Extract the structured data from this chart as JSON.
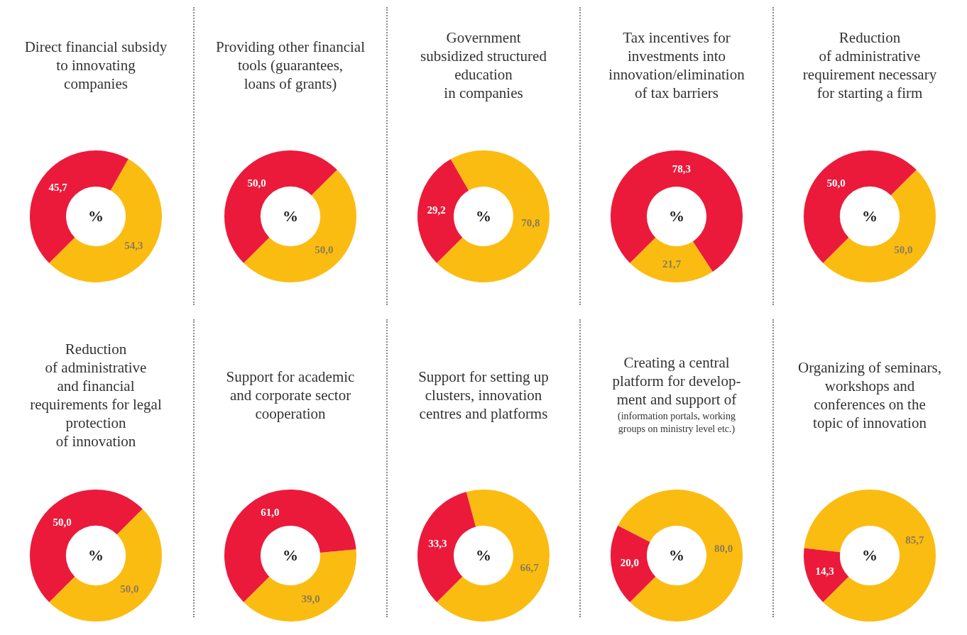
{
  "chart_data": [
    {
      "type": "donut",
      "title": "Direct financial subsidy\nto innovating\ncompanies",
      "categories": [
        null,
        null
      ],
      "values": [
        54.3,
        45.7
      ],
      "colors": [
        "#fbbc12",
        "#eb1a3b"
      ],
      "value_labels": [
        "54,3",
        "45,7"
      ],
      "annotations": [
        "%"
      ]
    },
    {
      "type": "donut",
      "title": "Providing other financial\ntools (guarantees,\nloans of grants)",
      "categories": [
        null,
        null
      ],
      "values": [
        50.0,
        50.0
      ],
      "colors": [
        "#fbbc12",
        "#eb1a3b"
      ],
      "value_labels": [
        "50,0",
        "50,0"
      ],
      "annotations": [
        "%"
      ]
    },
    {
      "type": "donut",
      "title": "Government\nsubsidized structured\neducation\nin companies",
      "categories": [
        null,
        null
      ],
      "values": [
        70.8,
        29.2
      ],
      "colors": [
        "#fbbc12",
        "#eb1a3b"
      ],
      "value_labels": [
        "70,8",
        "29,2"
      ],
      "annotations": [
        "%"
      ]
    },
    {
      "type": "donut",
      "title": "Tax incentives for\ninvestments into\ninnovation/elimination\nof tax barriers",
      "categories": [
        null,
        null
      ],
      "values": [
        21.7,
        78.3
      ],
      "colors": [
        "#fbbc12",
        "#eb1a3b"
      ],
      "value_labels": [
        "21,7",
        "78,3"
      ],
      "annotations": [
        "%"
      ]
    },
    {
      "type": "donut",
      "title": "Reduction\nof administrative\nrequirement necessary\nfor starting a firm",
      "categories": [
        null,
        null
      ],
      "values": [
        50.0,
        50.0
      ],
      "colors": [
        "#fbbc12",
        "#eb1a3b"
      ],
      "value_labels": [
        "50,0",
        "50,0"
      ],
      "annotations": [
        "%"
      ]
    },
    {
      "type": "donut",
      "title": "Reduction\nof administrative\nand financial\nrequirements for legal\nprotection\nof innovation",
      "categories": [
        null,
        null
      ],
      "values": [
        50.0,
        50.0
      ],
      "colors": [
        "#fbbc12",
        "#eb1a3b"
      ],
      "value_labels": [
        "50,0",
        "50,0"
      ],
      "annotations": [
        "%"
      ]
    },
    {
      "type": "donut",
      "title": "Support for academic\nand corporate sector\ncooperation",
      "categories": [
        null,
        null
      ],
      "values": [
        39.0,
        61.0
      ],
      "colors": [
        "#fbbc12",
        "#eb1a3b"
      ],
      "value_labels": [
        "39,0",
        "61,0"
      ],
      "annotations": [
        "%"
      ]
    },
    {
      "type": "donut",
      "title": "Support for setting up\nclusters, innovation\ncentres and platforms",
      "categories": [
        null,
        null
      ],
      "values": [
        66.7,
        33.3
      ],
      "colors": [
        "#fbbc12",
        "#eb1a3b"
      ],
      "value_labels": [
        "66,7",
        "33,3"
      ],
      "annotations": [
        "%"
      ]
    },
    {
      "type": "donut",
      "title": "Creating a central\nplatform for develop-\nment and support of",
      "subtitle": "(information portals, working\ngroups on ministry level etc.)",
      "categories": [
        null,
        null
      ],
      "values": [
        80.0,
        20.0
      ],
      "colors": [
        "#fbbc12",
        "#eb1a3b"
      ],
      "value_labels": [
        "80,0",
        "20,0"
      ],
      "annotations": [
        "%"
      ]
    },
    {
      "type": "donut",
      "title": "Organizing of seminars,\nworkshops and\nconferences on the\ntopic of innovation",
      "categories": [
        null,
        null
      ],
      "values": [
        85.7,
        14.3
      ],
      "colors": [
        "#fbbc12",
        "#eb1a3b"
      ],
      "value_labels": [
        "85,7",
        "14,3"
      ],
      "annotations": [
        "%"
      ]
    }
  ]
}
